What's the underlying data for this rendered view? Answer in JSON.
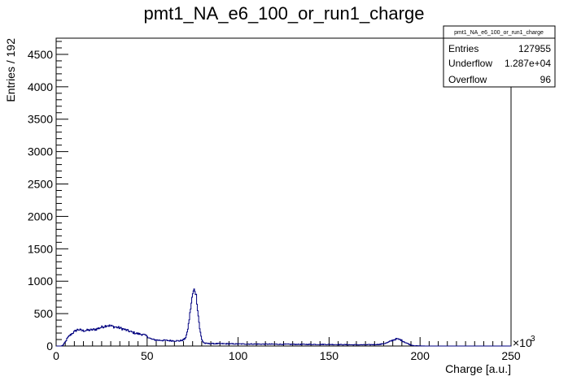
{
  "chart_data": {
    "type": "histogram",
    "title": "pmt1_NA_e6_100_or_run1_charge",
    "xlabel": "Charge [a.u.]",
    "ylabel": "Entries / 192",
    "x_exponent_label": "×10",
    "x_exponent_power": "3",
    "xlim": [
      0,
      250
    ],
    "ylim": [
      0,
      4750
    ],
    "x_ticks": [
      {
        "value": 0,
        "label": "0"
      },
      {
        "value": 50,
        "label": "50"
      },
      {
        "value": 100,
        "label": "100"
      },
      {
        "value": 150,
        "label": "150"
      },
      {
        "value": 200,
        "label": "200"
      },
      {
        "value": 250,
        "label": "250"
      }
    ],
    "y_ticks": [
      {
        "value": 0,
        "label": "0"
      },
      {
        "value": 500,
        "label": "500"
      },
      {
        "value": 1000,
        "label": "1000"
      },
      {
        "value": 1500,
        "label": "1500"
      },
      {
        "value": 2000,
        "label": "2000"
      },
      {
        "value": 2500,
        "label": "2500"
      },
      {
        "value": 3000,
        "label": "3000"
      },
      {
        "value": 3500,
        "label": "3500"
      },
      {
        "value": 4000,
        "label": "4000"
      },
      {
        "value": 4500,
        "label": "4500"
      }
    ],
    "line_color": "#000080",
    "grid": false,
    "legend": "top-right",
    "profile": [
      [
        0,
        0
      ],
      [
        3,
        0
      ],
      [
        4,
        20
      ],
      [
        5,
        60
      ],
      [
        6,
        110
      ],
      [
        7,
        150
      ],
      [
        8,
        175
      ],
      [
        9,
        200
      ],
      [
        10,
        220
      ],
      [
        11,
        240
      ],
      [
        12,
        255
      ],
      [
        13,
        250
      ],
      [
        14,
        240
      ],
      [
        15,
        235
      ],
      [
        16,
        240
      ],
      [
        18,
        245
      ],
      [
        20,
        250
      ],
      [
        22,
        260
      ],
      [
        24,
        280
      ],
      [
        26,
        300
      ],
      [
        28,
        320
      ],
      [
        30,
        310
      ],
      [
        32,
        295
      ],
      [
        34,
        285
      ],
      [
        36,
        270
      ],
      [
        38,
        250
      ],
      [
        40,
        230
      ],
      [
        42,
        210
      ],
      [
        44,
        195
      ],
      [
        46,
        185
      ],
      [
        48,
        175
      ],
      [
        50,
        150
      ],
      [
        52,
        110
      ],
      [
        54,
        95
      ],
      [
        56,
        90
      ],
      [
        58,
        88
      ],
      [
        60,
        86
      ],
      [
        62,
        84
      ],
      [
        64,
        82
      ],
      [
        66,
        80
      ],
      [
        68,
        80
      ],
      [
        70,
        95
      ],
      [
        71,
        120
      ],
      [
        72,
        200
      ],
      [
        73,
        380
      ],
      [
        74,
        600
      ],
      [
        75,
        800
      ],
      [
        76,
        880
      ],
      [
        77,
        780
      ],
      [
        78,
        500
      ],
      [
        79,
        250
      ],
      [
        80,
        100
      ],
      [
        81,
        55
      ],
      [
        82,
        40
      ],
      [
        85,
        38
      ],
      [
        90,
        36
      ],
      [
        95,
        34
      ],
      [
        100,
        32
      ],
      [
        110,
        30
      ],
      [
        120,
        28
      ],
      [
        130,
        26
      ],
      [
        140,
        25
      ],
      [
        150,
        24
      ],
      [
        160,
        20
      ],
      [
        170,
        18
      ],
      [
        178,
        25
      ],
      [
        182,
        50
      ],
      [
        185,
        90
      ],
      [
        187,
        110
      ],
      [
        189,
        100
      ],
      [
        191,
        70
      ],
      [
        193,
        40
      ],
      [
        195,
        15
      ],
      [
        197,
        5
      ],
      [
        200,
        2
      ],
      [
        203,
        0
      ],
      [
        250,
        0
      ]
    ]
  },
  "stats_box": {
    "title": "pmt1_NA_e6_100_or_run1_charge",
    "rows": [
      {
        "label": "Entries",
        "value": "127955"
      },
      {
        "label": "Underflow",
        "value": "1.287e+04"
      },
      {
        "label": "Overflow",
        "value": "96"
      }
    ]
  }
}
